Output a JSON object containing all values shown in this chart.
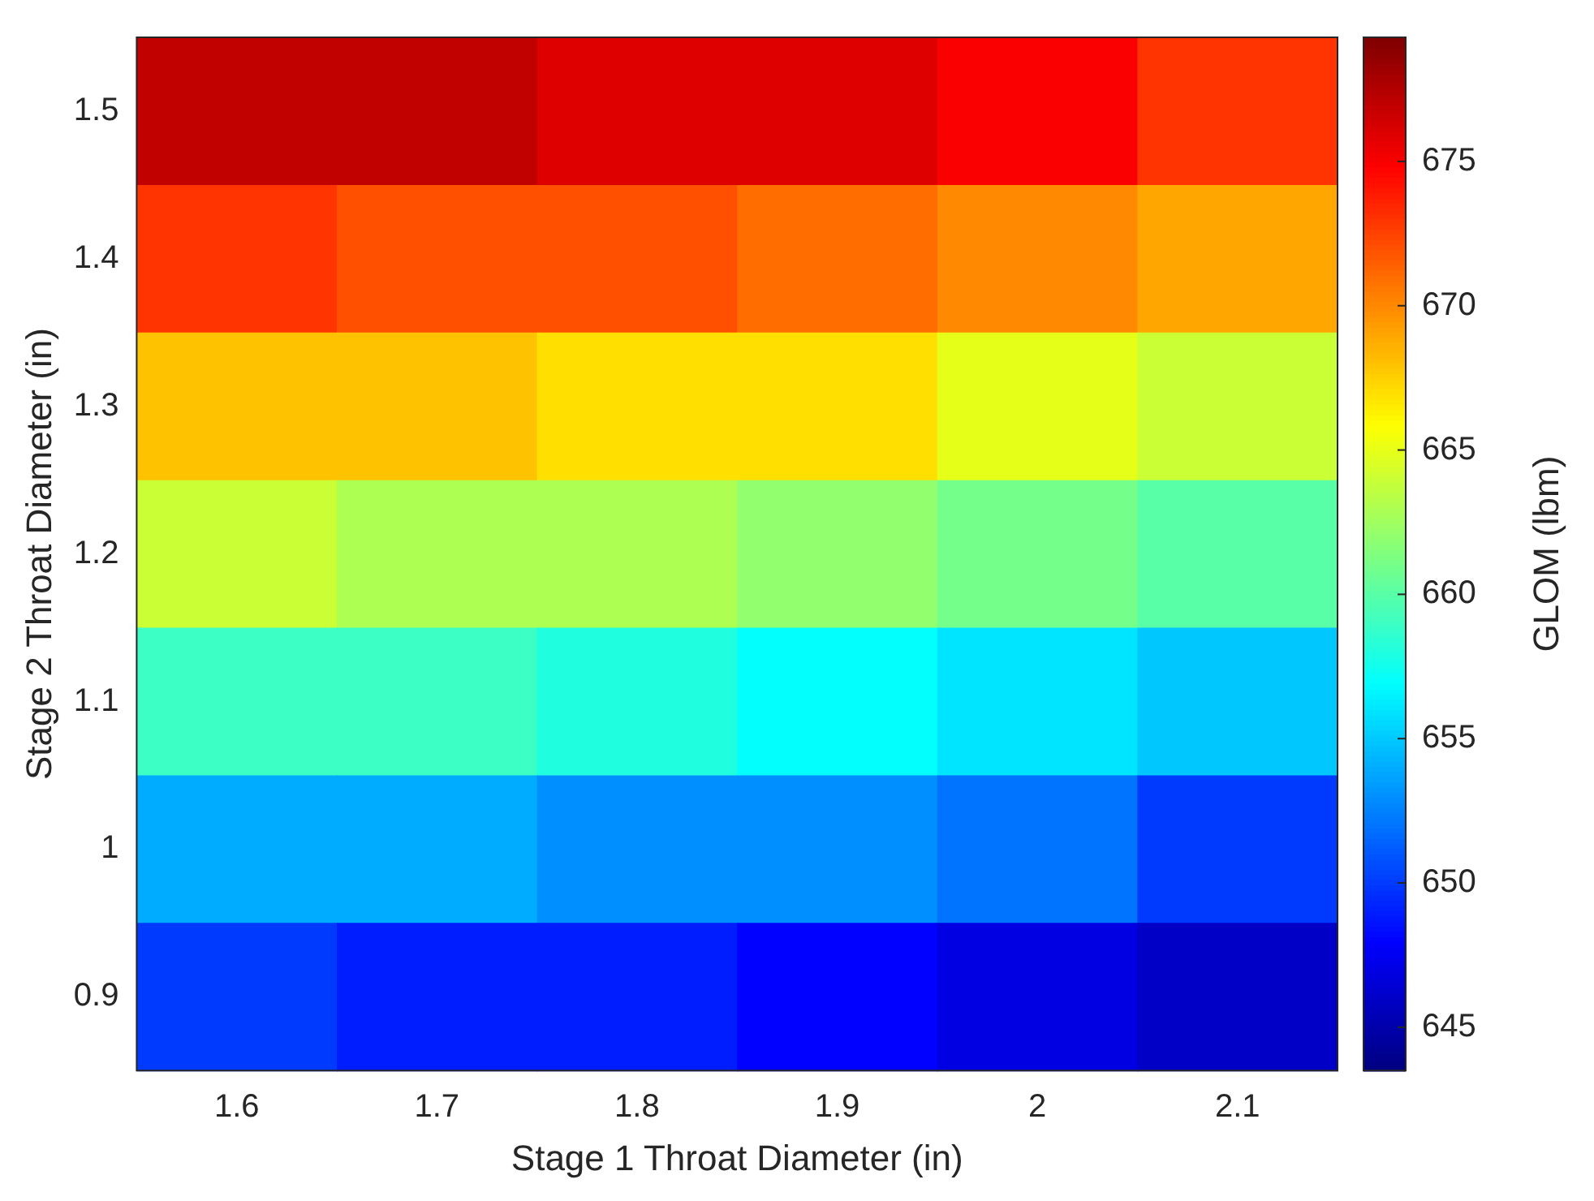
{
  "chart_data": {
    "type": "heatmap",
    "xlabel": "Stage 1 Throat Diameter (in)",
    "ylabel": "Stage 2 Throat Diameter (in)",
    "clabel": "GLOM (lbm)",
    "categories": [
      "1.6",
      "1.7",
      "1.8",
      "1.9",
      "2",
      "2.1"
    ],
    "y_categories": [
      "1.5",
      "1.4",
      "1.3",
      "1.2",
      "1.1",
      "1",
      "0.9"
    ],
    "clim": [
      643.5,
      679.3
    ],
    "cticks": [
      645,
      650,
      655,
      660,
      665,
      670,
      675
    ],
    "cells": [
      [
        677,
        677,
        676,
        676,
        675,
        673
      ],
      [
        673,
        672,
        672,
        671,
        670,
        669
      ],
      [
        668,
        668,
        667,
        667,
        665,
        664
      ],
      [
        664,
        663,
        663,
        662,
        661,
        660
      ],
      [
        659,
        659,
        658,
        657,
        656,
        655
      ],
      [
        654,
        654,
        653,
        653,
        652,
        650
      ],
      [
        650,
        649,
        649,
        648,
        647,
        646
      ]
    ]
  }
}
